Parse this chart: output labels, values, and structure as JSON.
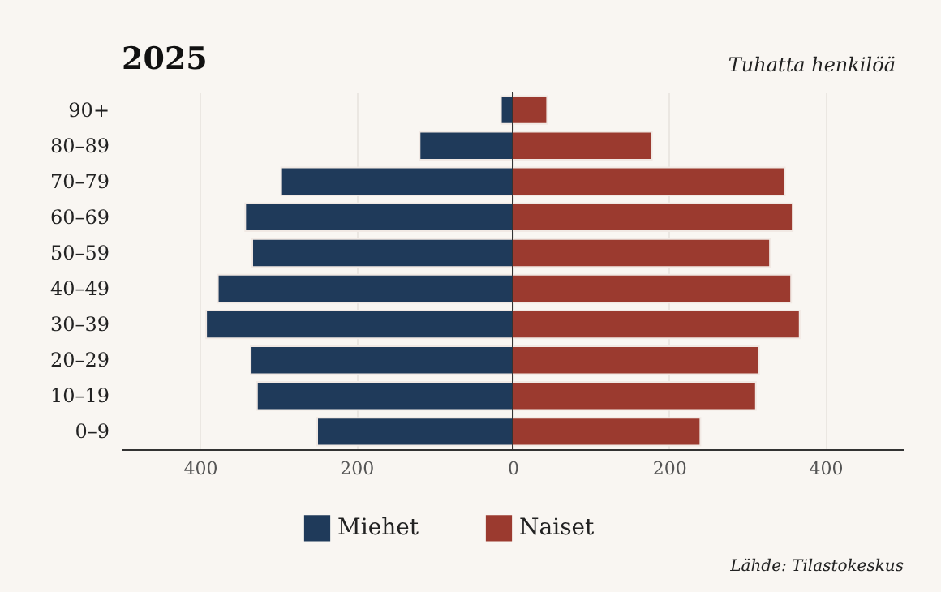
{
  "chart_data": {
    "type": "bar",
    "orientation": "horizontal",
    "title": "2025",
    "categories": [
      "90+",
      "80–89",
      "70–79",
      "60–69",
      "50–59",
      "40–49",
      "30–39",
      "20–29",
      "10–19",
      "0–9"
    ],
    "series": [
      {
        "name": "Miehet",
        "color": "#1f3a5a",
        "values": [
          -15,
          -119,
          -296,
          -342,
          -333,
          -377,
          -392,
          -335,
          -327,
          -250
        ]
      },
      {
        "name": "Naiset",
        "color": "#9b3a2f",
        "values": [
          44,
          178,
          348,
          358,
          329,
          356,
          367,
          315,
          311,
          240
        ]
      }
    ],
    "xlim": [
      -500,
      500
    ],
    "xticks": [
      {
        "value": -400,
        "label": "400"
      },
      {
        "value": -200,
        "label": "200"
      },
      0,
      200,
      400
    ],
    "grid": "x",
    "legend": "bottom",
    "stacked": true,
    "ref_lines": [
      {
        "axis": "x",
        "value": 0,
        "color": "#333333"
      }
    ],
    "annotations": [
      "Tuhatta henkilöä",
      "Lähde: Tilastokeskus"
    ]
  }
}
